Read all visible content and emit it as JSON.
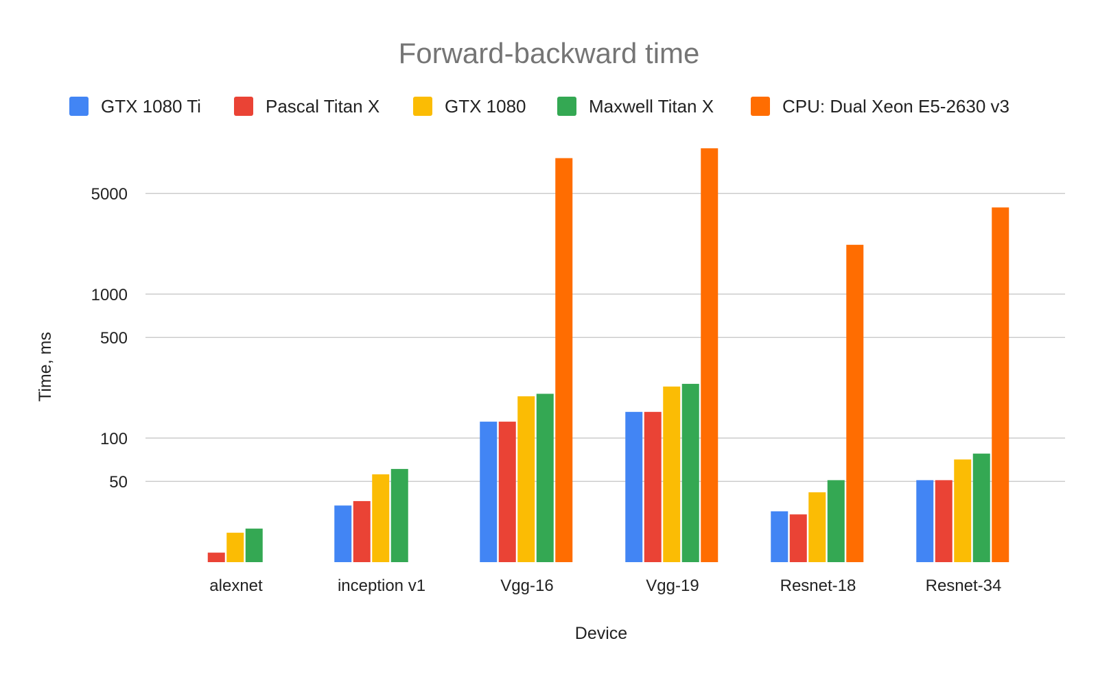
{
  "chart_data": {
    "type": "bar",
    "title": "Forward-backward time",
    "xlabel": "Device",
    "ylabel": "Time, ms",
    "y_scale": "log",
    "y_ticks": [
      50,
      100,
      500,
      1000,
      5000
    ],
    "y_tick_labels": [
      "50",
      "100",
      "500",
      "1000",
      "5000"
    ],
    "ylim": [
      15,
      11000
    ],
    "grid": true,
    "legend_position": "top",
    "categories": [
      "alexnet",
      "inception v1",
      "Vgg-16",
      "Vgg-19",
      "Resnet-18",
      "Resnet-34"
    ],
    "series": [
      {
        "name": "GTX 1080 Ti",
        "color": "#4285f4",
        "values": [
          null,
          34,
          130,
          152,
          31,
          51
        ]
      },
      {
        "name": "Pascal Titan X",
        "color": "#ea4335",
        "values": [
          16,
          36.5,
          130,
          152,
          29.5,
          51
        ]
      },
      {
        "name": "GTX 1080",
        "color": "#fbbc04",
        "values": [
          22,
          56,
          195,
          228,
          42,
          71
        ]
      },
      {
        "name": "Maxwell Titan X",
        "color": "#34a853",
        "values": [
          23.5,
          61,
          203,
          238,
          51,
          78
        ]
      },
      {
        "name": "CPU: Dual Xeon E5-2630 v3",
        "color": "#ff6d01",
        "values": [
          null,
          null,
          8800,
          10300,
          2200,
          4000
        ]
      }
    ]
  }
}
